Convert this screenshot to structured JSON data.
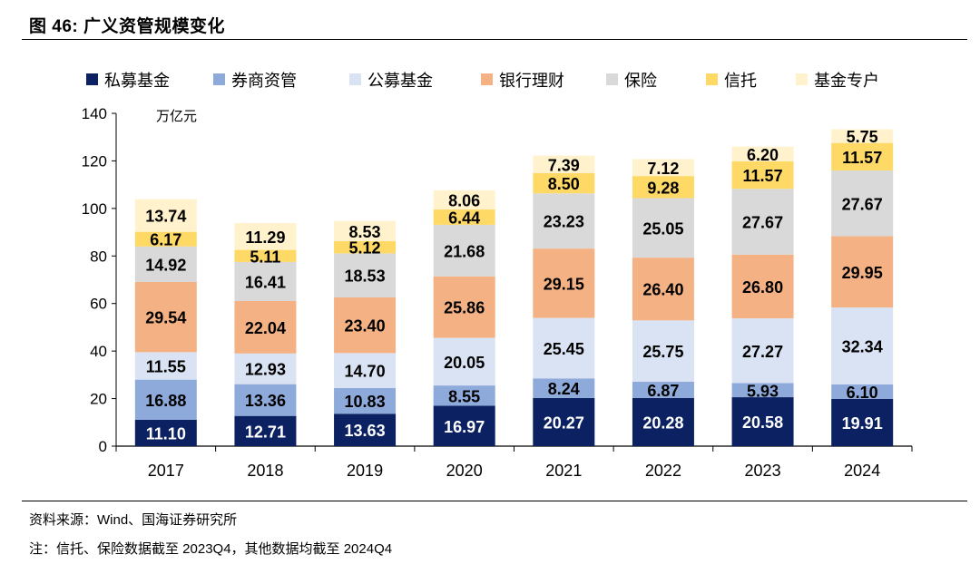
{
  "header": {
    "title": "图 46:  广义资管规模变化"
  },
  "footer": {
    "source": "资料来源：Wind、国海证券研究所",
    "note": "注：信托、保险数据截至 2023Q4，其他数据均截至 2024Q4"
  },
  "chart_data": {
    "type": "bar",
    "stacked": true,
    "unit_label": "万亿元",
    "categories": [
      "2017",
      "2018",
      "2019",
      "2020",
      "2021",
      "2022",
      "2023",
      "2024"
    ],
    "ylim": [
      0,
      140
    ],
    "yticks": [
      0,
      20,
      40,
      60,
      80,
      100,
      120,
      140
    ],
    "grid": false,
    "legend_position": "top",
    "series": [
      {
        "name": "私募基金",
        "color": "#0b2161",
        "label_color": "#ffffff",
        "values": [
          11.1,
          12.71,
          13.63,
          16.97,
          20.27,
          20.28,
          20.58,
          19.91
        ]
      },
      {
        "name": "券商资管",
        "color": "#8eaadb",
        "label_color": "#000000",
        "values": [
          16.88,
          13.36,
          10.83,
          8.55,
          8.24,
          6.87,
          5.93,
          6.1
        ]
      },
      {
        "name": "公募基金",
        "color": "#dae3f3",
        "label_color": "#000000",
        "values": [
          11.55,
          12.93,
          14.7,
          20.05,
          25.45,
          25.75,
          27.27,
          32.34
        ]
      },
      {
        "name": "银行理财",
        "color": "#f4b183",
        "label_color": "#000000",
        "values": [
          29.54,
          22.04,
          23.4,
          25.86,
          29.15,
          26.4,
          26.8,
          29.95
        ]
      },
      {
        "name": "保险",
        "color": "#d9d9d9",
        "label_color": "#000000",
        "values": [
          14.92,
          16.41,
          18.53,
          21.68,
          23.23,
          25.05,
          27.67,
          27.67
        ]
      },
      {
        "name": "信托",
        "color": "#ffd966",
        "label_color": "#000000",
        "values": [
          6.17,
          5.11,
          5.12,
          6.44,
          8.5,
          9.28,
          11.57,
          11.57
        ]
      },
      {
        "name": "基金专户",
        "color": "#fff2cc",
        "label_color": "#000000",
        "values": [
          13.74,
          11.29,
          8.53,
          8.06,
          7.39,
          7.12,
          6.2,
          5.75
        ]
      }
    ]
  }
}
